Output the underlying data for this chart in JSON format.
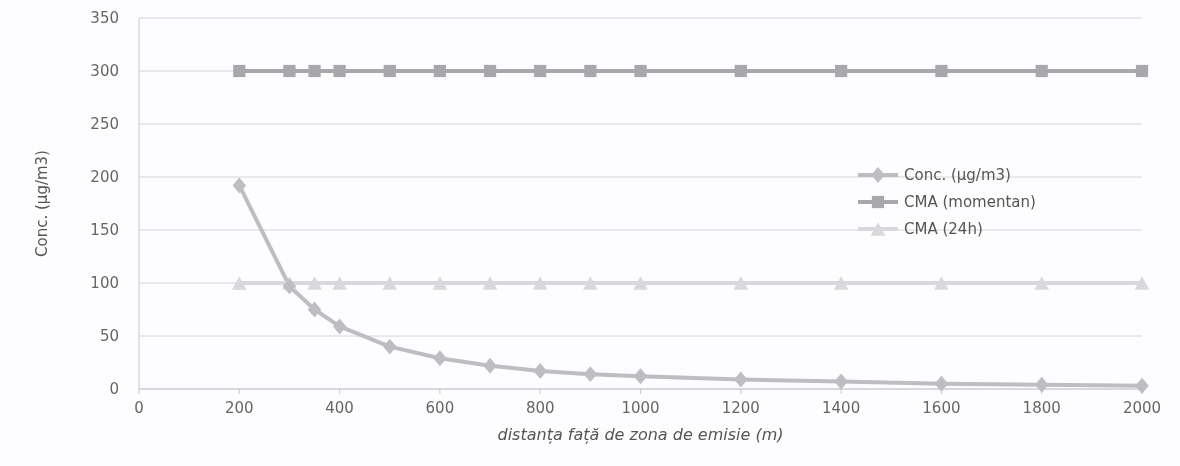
{
  "chart_data": {
    "type": "line",
    "xlabel": "distanța față de zona de emisie (m)",
    "ylabel": "Conc. (µg/m3)",
    "x": [
      200,
      300,
      350,
      400,
      500,
      600,
      700,
      800,
      900,
      1000,
      1200,
      1400,
      1600,
      1800,
      2000
    ],
    "series": [
      {
        "name": "Conc. (µg/m3)",
        "color": "#bdbdc2",
        "marker": "diamond",
        "values": [
          192,
          97,
          75,
          59,
          40,
          29,
          22,
          17,
          14,
          12,
          9,
          7,
          5,
          4,
          3
        ]
      },
      {
        "name": "CMA (momentan)",
        "color": "#a8a8aa",
        "marker": "square",
        "values": [
          300,
          300,
          300,
          300,
          300,
          300,
          300,
          300,
          300,
          300,
          300,
          300,
          300,
          300,
          300
        ]
      },
      {
        "name": "CMA (24h)",
        "color": "#d9d9db",
        "marker": "triangle",
        "values": [
          100,
          100,
          100,
          100,
          100,
          100,
          100,
          100,
          100,
          100,
          100,
          100,
          100,
          100,
          100
        ]
      }
    ],
    "xlim": [
      0,
      2000
    ],
    "xticks": [
      0,
      200,
      400,
      600,
      800,
      1000,
      1200,
      1400,
      1600,
      1800,
      2000
    ],
    "ylim": [
      0,
      350
    ],
    "yticks": [
      0,
      50,
      100,
      150,
      200,
      250,
      300,
      350
    ],
    "grid": "y",
    "legend": "right",
    "line_style": "solid"
  }
}
